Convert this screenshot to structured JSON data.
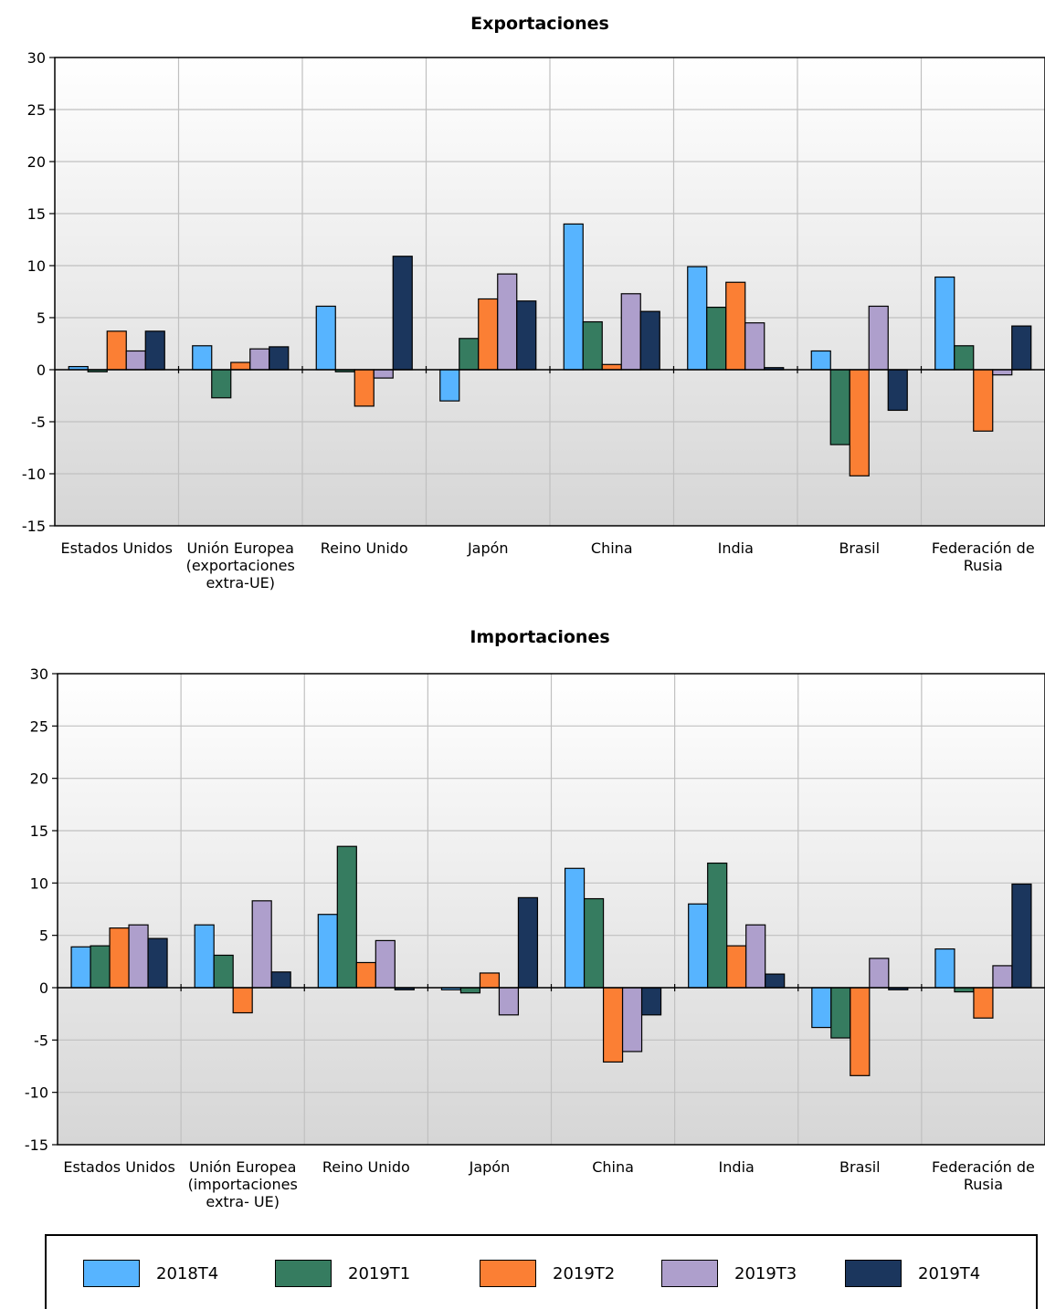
{
  "legend": [
    "2018T4",
    "2019T1",
    "2019T2",
    "2019T3",
    "2019T4"
  ],
  "colors": [
    "#57b4ff",
    "#367c60",
    "#fb7f34",
    "#ae9fcc",
    "#1b365d"
  ],
  "chart_data": [
    {
      "type": "bar",
      "title": "Exportaciones",
      "categories": [
        "Estados Unidos",
        "Unión Europea (exportaciones extra-UE)",
        "Reino Unido",
        "Japón",
        "China",
        "India",
        "Brasil",
        "Federación de Rusia"
      ],
      "category_lines": [
        [
          "Estados Unidos"
        ],
        [
          "Unión Europea",
          "(exportaciones",
          "extra-UE)"
        ],
        [
          "Reino Unido"
        ],
        [
          "Japón"
        ],
        [
          "China"
        ],
        [
          "India"
        ],
        [
          "Brasil"
        ],
        [
          "Federación de",
          "Rusia"
        ]
      ],
      "ylim": [
        -15,
        30
      ],
      "yticks": [
        30,
        25,
        20,
        15,
        10,
        5,
        0,
        -5,
        -10,
        -15
      ],
      "grid": true,
      "series": [
        {
          "name": "2018T4",
          "values": [
            0.3,
            2.3,
            6.1,
            -3.0,
            14.0,
            9.9,
            1.8,
            8.9
          ]
        },
        {
          "name": "2019T1",
          "values": [
            -0.2,
            -2.7,
            -0.2,
            3.0,
            4.6,
            6.0,
            -7.2,
            2.3
          ]
        },
        {
          "name": "2019T2",
          "values": [
            3.7,
            0.7,
            -3.5,
            6.8,
            0.5,
            8.4,
            -10.2,
            -5.9
          ]
        },
        {
          "name": "2019T3",
          "values": [
            1.8,
            2.0,
            -0.8,
            9.2,
            7.3,
            4.5,
            6.1,
            -0.5
          ]
        },
        {
          "name": "2019T4",
          "values": [
            3.7,
            2.2,
            10.9,
            6.6,
            5.6,
            0.2,
            -3.9,
            4.2
          ]
        }
      ]
    },
    {
      "type": "bar",
      "title": "Importaciones",
      "categories": [
        "Estados Unidos",
        "Unión Europea (importaciones extra- UE)",
        "Reino Unido",
        "Japón",
        "China",
        "India",
        "Brasil",
        "Federación de Rusia"
      ],
      "category_lines": [
        [
          "Estados Unidos"
        ],
        [
          "Unión Europea",
          "(importaciones",
          "extra- UE)"
        ],
        [
          "Reino Unido"
        ],
        [
          "Japón"
        ],
        [
          "China"
        ],
        [
          "India"
        ],
        [
          "Brasil"
        ],
        [
          "Federación de",
          "Rusia"
        ]
      ],
      "ylim": [
        -15,
        30
      ],
      "yticks": [
        30,
        25,
        20,
        15,
        10,
        5,
        0,
        -5,
        -10,
        -15
      ],
      "grid": true,
      "series": [
        {
          "name": "2018T4",
          "values": [
            3.9,
            6.0,
            7.0,
            -0.2,
            11.4,
            8.0,
            -3.8,
            3.7
          ]
        },
        {
          "name": "2019T1",
          "values": [
            4.0,
            3.1,
            13.5,
            -0.5,
            8.5,
            11.9,
            -4.8,
            -0.4
          ]
        },
        {
          "name": "2019T2",
          "values": [
            5.7,
            -2.4,
            2.4,
            1.4,
            -7.1,
            4.0,
            -8.4,
            -2.9
          ]
        },
        {
          "name": "2019T3",
          "values": [
            6.0,
            8.3,
            4.5,
            -2.6,
            -6.1,
            6.0,
            2.8,
            2.1
          ]
        },
        {
          "name": "2019T4",
          "values": [
            4.7,
            1.5,
            -0.2,
            8.6,
            -2.6,
            1.3,
            -0.2,
            9.9
          ]
        }
      ]
    }
  ]
}
